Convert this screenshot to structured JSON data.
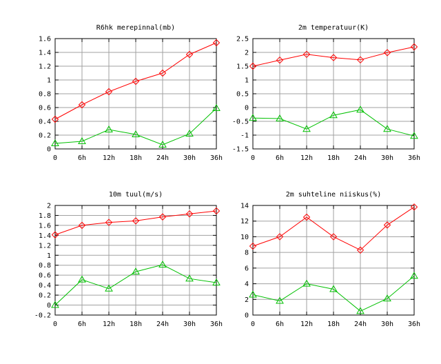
{
  "colors": {
    "series1": "#ff0000",
    "series2": "#00c000",
    "grid": "#a0a0a0",
    "background": "#ffffff"
  },
  "chart_data": [
    {
      "type": "line",
      "title": "R6hk merepinnal(mb)",
      "x": [
        "0",
        "6h",
        "12h",
        "18h",
        "24h",
        "30h",
        "36h"
      ],
      "ylim": [
        0,
        1.6
      ],
      "yticks": [
        "0",
        "0.2",
        "0.4",
        "0.6",
        "0.8",
        "1",
        "1.2",
        "1.4",
        "1.6"
      ],
      "grid": true,
      "series": [
        {
          "marker": "diamond",
          "color": "#ff0000",
          "values": [
            0.43,
            0.64,
            0.83,
            0.98,
            1.1,
            1.37,
            1.54
          ]
        },
        {
          "marker": "triangle",
          "color": "#00c000",
          "values": [
            0.08,
            0.11,
            0.28,
            0.21,
            0.06,
            0.22,
            0.59
          ]
        }
      ]
    },
    {
      "type": "line",
      "title": "2m temperatuur(K)",
      "x": [
        "0",
        "6h",
        "12h",
        "18h",
        "24h",
        "30h",
        "36h"
      ],
      "ylim": [
        -1.5,
        2.5
      ],
      "yticks": [
        "-1.5",
        "-1",
        "-0.5",
        "0",
        "0.5",
        "1",
        "1.5",
        "2",
        "2.5"
      ],
      "grid": true,
      "series": [
        {
          "marker": "diamond",
          "color": "#ff0000",
          "values": [
            1.5,
            1.72,
            1.93,
            1.81,
            1.73,
            1.99,
            2.2
          ]
        },
        {
          "marker": "triangle",
          "color": "#00c000",
          "values": [
            -0.38,
            -0.4,
            -0.78,
            -0.28,
            -0.08,
            -0.78,
            -1.03
          ]
        }
      ]
    },
    {
      "type": "line",
      "title": "10m tuul(m/s)",
      "x": [
        "0",
        "6h",
        "12h",
        "18h",
        "24h",
        "30h",
        "36h"
      ],
      "ylim": [
        -0.2,
        2
      ],
      "yticks": [
        "-0.2",
        "0",
        "0.2",
        "0.4",
        "0.6",
        "0.8",
        "1",
        "1.2",
        "1.4",
        "1.6",
        "1.8",
        "2"
      ],
      "grid": true,
      "series": [
        {
          "marker": "diamond",
          "color": "#ff0000",
          "values": [
            1.41,
            1.6,
            1.66,
            1.69,
            1.77,
            1.83,
            1.89
          ]
        },
        {
          "marker": "triangle",
          "color": "#00c000",
          "values": [
            0.0,
            0.51,
            0.33,
            0.67,
            0.81,
            0.53,
            0.45
          ]
        }
      ]
    },
    {
      "type": "line",
      "title": "2m suhteline niiskus(%)",
      "x": [
        "0",
        "6h",
        "12h",
        "18h",
        "24h",
        "30h",
        "36h"
      ],
      "ylim": [
        0,
        14
      ],
      "yticks": [
        "0",
        "2",
        "4",
        "6",
        "8",
        "10",
        "12",
        "14"
      ],
      "grid": true,
      "series": [
        {
          "marker": "diamond",
          "color": "#ff0000",
          "values": [
            8.8,
            10.0,
            12.5,
            10.0,
            8.3,
            11.5,
            13.8
          ]
        },
        {
          "marker": "triangle",
          "color": "#00c000",
          "values": [
            2.6,
            1.8,
            4.0,
            3.3,
            0.5,
            2.1,
            5.0
          ]
        }
      ]
    }
  ]
}
